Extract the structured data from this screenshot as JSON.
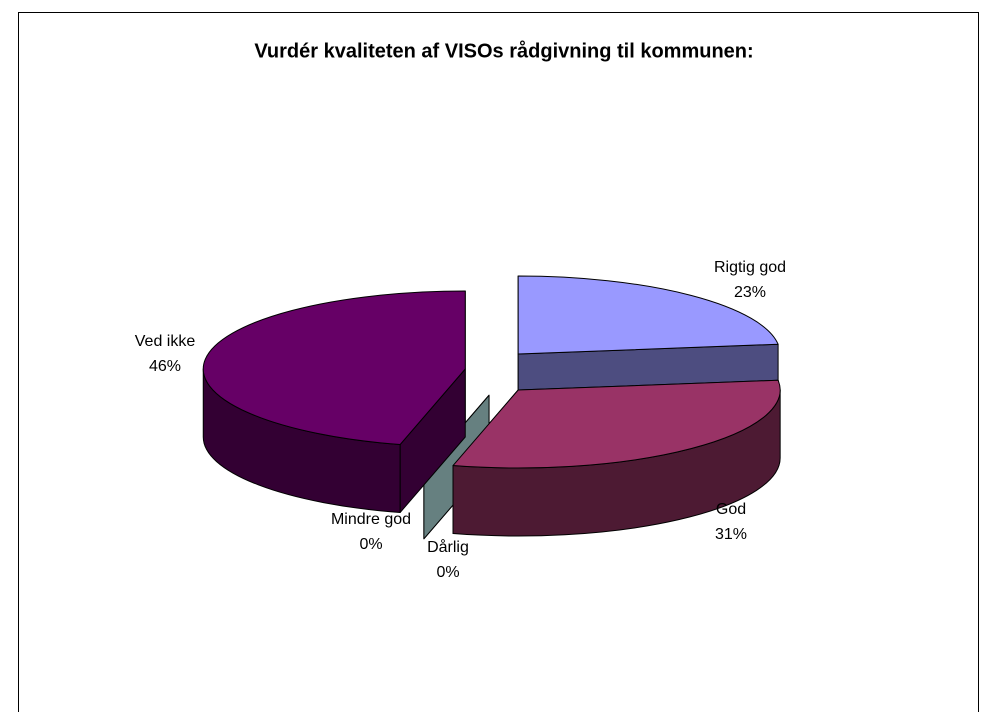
{
  "chart_data": {
    "type": "pie",
    "title": "Vurdér kvaliteten af VISOs rådgivning til kommunen:",
    "categories": [
      "Rigtig god",
      "God",
      "Dårlig",
      "Mindre god",
      "Ved ikke"
    ],
    "values": [
      23,
      31,
      0,
      0,
      46
    ],
    "value_labels": [
      "23%",
      "31%",
      "0%",
      "0%",
      "46%"
    ],
    "colors": [
      "#9999ff",
      "#993366",
      "#ffffcc",
      "#ccffff",
      "#660066"
    ]
  }
}
